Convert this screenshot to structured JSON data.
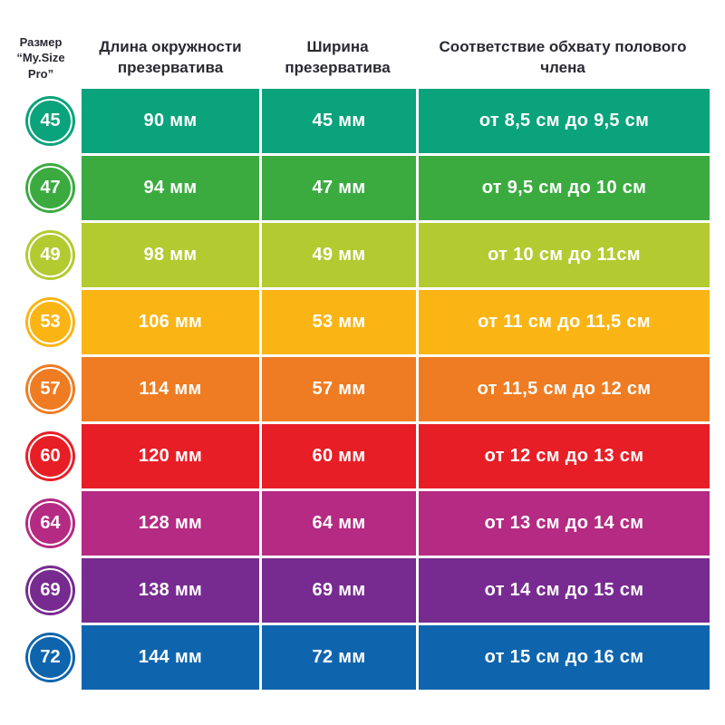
{
  "header": {
    "size_line1": "Размер",
    "size_line2": "“My.Size",
    "size_line3": "Pro”",
    "col_circumference": "Длина окружности презерватива",
    "col_width": "Ширина презерватива",
    "col_girth": "Соответствие обхвату полового члена"
  },
  "colors": {
    "background": "#ffffff",
    "header_text": "#2a2933",
    "cell_text": "#ffffff"
  },
  "chart_data": {
    "type": "table",
    "title": "Таблица размеров My.Size Pro",
    "columns": [
      "Размер “My.Size Pro”",
      "Длина окружности презерватива",
      "Ширина презерватива",
      "Соответствие обхвату полового члена"
    ],
    "rows": [
      {
        "size": "45",
        "circumference": "90 мм",
        "width": "45 мм",
        "girth": "от 8,5 см до 9,5 см",
        "color": "#0aa37c"
      },
      {
        "size": "47",
        "circumference": "94 мм",
        "width": "47 мм",
        "girth": "от 9,5 см до 10 см",
        "color": "#3bab40"
      },
      {
        "size": "49",
        "circumference": "98 мм",
        "width": "49 мм",
        "girth": "от 10 см до 11см",
        "color": "#b3ca31"
      },
      {
        "size": "53",
        "circumference": "106 мм",
        "width": "53 мм",
        "girth": "от 11 см до 11,5 см",
        "color": "#fab515"
      },
      {
        "size": "57",
        "circumference": "114 мм",
        "width": "57 мм",
        "girth": "от 11,5 см до 12 см",
        "color": "#ef7c22"
      },
      {
        "size": "60",
        "circumference": "120 мм",
        "width": "60 мм",
        "girth": "от 12 см до 13 см",
        "color": "#e81e26"
      },
      {
        "size": "64",
        "circumference": "128 мм",
        "width": "64 мм",
        "girth": "от 13 см до 14 см",
        "color": "#b52a82"
      },
      {
        "size": "69",
        "circumference": "138 мм",
        "width": "69 мм",
        "girth": "от 14 см до 15 см",
        "color": "#772b90"
      },
      {
        "size": "72",
        "circumference": "144 мм",
        "width": "72 мм",
        "girth": "от 15 см до 16 см",
        "color": "#0e65ae"
      }
    ]
  }
}
